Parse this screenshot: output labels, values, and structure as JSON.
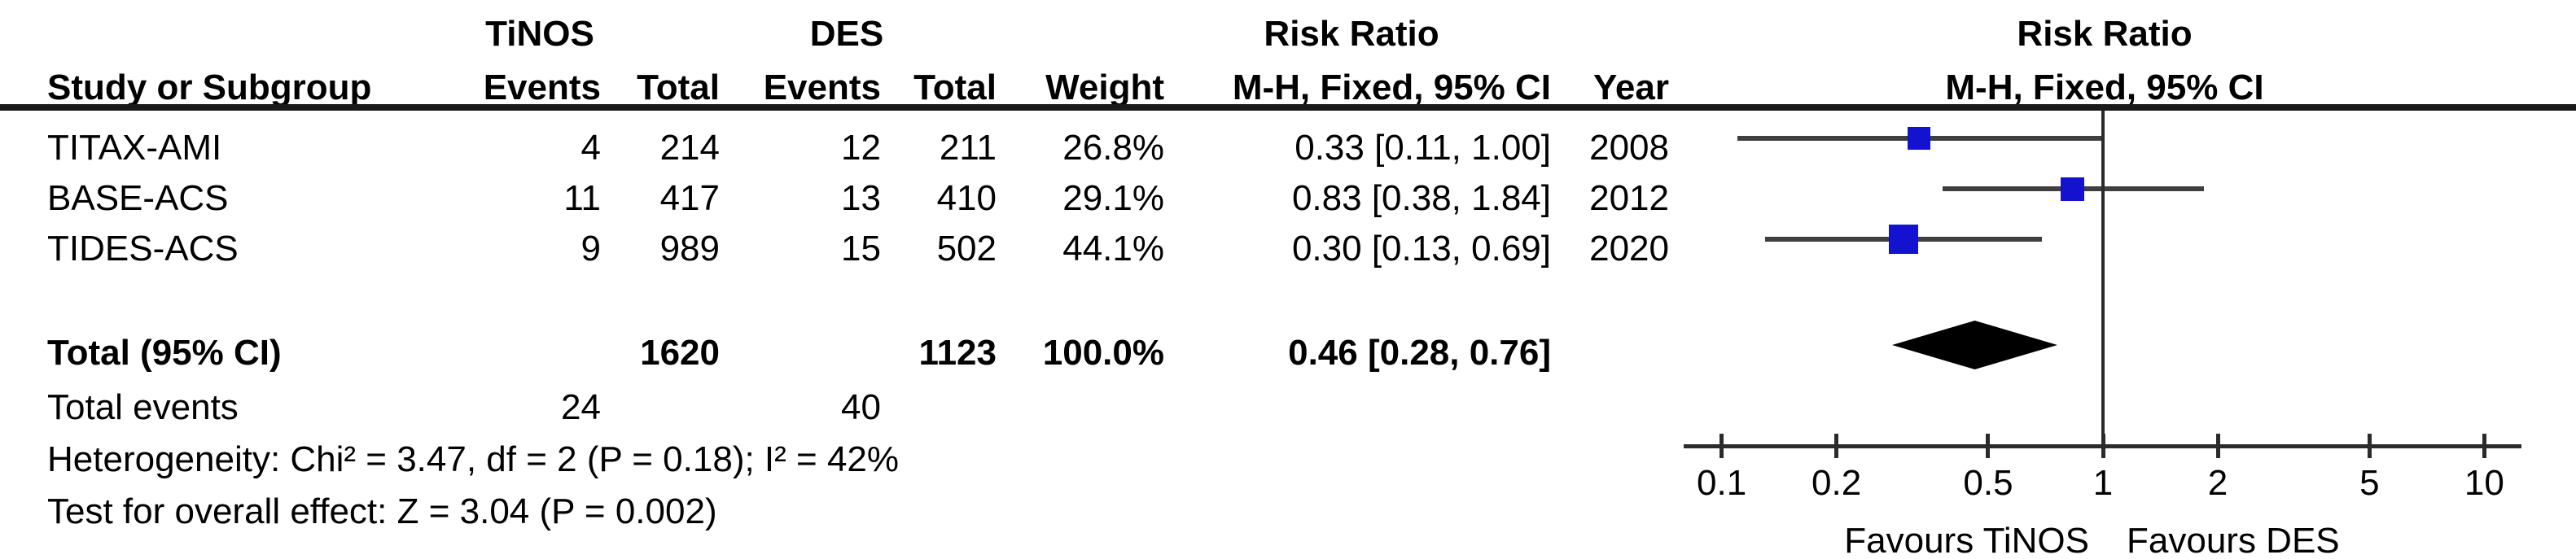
{
  "header": {
    "group1": "TiNOS",
    "group2": "DES",
    "risk_ratio": "Risk Ratio",
    "study_col": "Study or Subgroup",
    "events_col": "Events",
    "total_col": "Total",
    "weight_col": "Weight",
    "ci_col": "M-H, Fixed, 95% CI",
    "year_col": "Year"
  },
  "chart_data": {
    "type": "forest",
    "effect_measure": "Risk Ratio",
    "method": "M-H, Fixed, 95% CI",
    "x_scale": "log10",
    "axis_range": [
      0.08,
      12.5
    ],
    "null_value": 1,
    "axis_ticks": [
      {
        "v": 0.1,
        "label": "0.1"
      },
      {
        "v": 0.2,
        "label": "0.2"
      },
      {
        "v": 0.5,
        "label": "0.5"
      },
      {
        "v": 1,
        "label": "1"
      },
      {
        "v": 2,
        "label": "2"
      },
      {
        "v": 5,
        "label": "5"
      },
      {
        "v": 10,
        "label": "10"
      }
    ],
    "favours_left": "Favours TiNOS",
    "favours_right": "Favours DES",
    "studies": [
      {
        "name": "TITAX-AMI",
        "g1_events": 4,
        "g1_total": 214,
        "g2_events": 12,
        "g2_total": 211,
        "weight": 26.8,
        "weight_label": "26.8%",
        "rr": 0.33,
        "ci_low": 0.11,
        "ci_high": 1.0,
        "ci_label": "0.33 [0.11, 1.00]",
        "year": 2008
      },
      {
        "name": "BASE-ACS",
        "g1_events": 11,
        "g1_total": 417,
        "g2_events": 13,
        "g2_total": 410,
        "weight": 29.1,
        "weight_label": "29.1%",
        "rr": 0.83,
        "ci_low": 0.38,
        "ci_high": 1.84,
        "ci_label": "0.83 [0.38, 1.84]",
        "year": 2012
      },
      {
        "name": "TIDES-ACS",
        "g1_events": 9,
        "g1_total": 989,
        "g2_events": 15,
        "g2_total": 502,
        "weight": 44.1,
        "weight_label": "44.1%",
        "rr": 0.3,
        "ci_low": 0.13,
        "ci_high": 0.69,
        "ci_label": "0.30 [0.13, 0.69]",
        "year": 2020
      }
    ],
    "total": {
      "label": "Total (95% CI)",
      "g1_total": 1620,
      "g2_total": 1123,
      "weight_label": "100.0%",
      "rr": 0.46,
      "ci_low": 0.28,
      "ci_high": 0.76,
      "ci_label": "0.46 [0.28, 0.76]"
    },
    "total_events": {
      "label": "Total events",
      "g1": 24,
      "g2": 40
    },
    "heterogeneity": "Heterogeneity: Chi² = 3.47, df = 2 (P = 0.18); I² = 42%",
    "overall_effect": "Test for overall effect: Z = 3.04 (P = 0.002)"
  },
  "colors": {
    "square": "#1212cf",
    "ci_line": "#3f3f3f",
    "diamond": "#000000",
    "axis": "#2b2b2b",
    "rule": "#1a1a1a",
    "text": "#000000"
  }
}
